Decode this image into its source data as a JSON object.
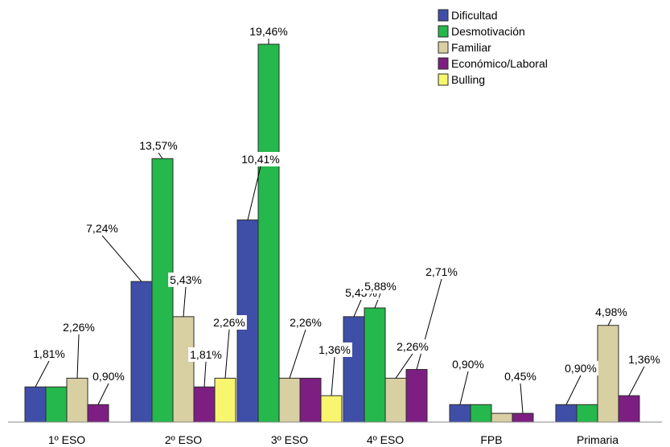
{
  "chart_data": {
    "type": "bar",
    "categories": [
      "1º ESO",
      "2º ESO",
      "3º ESO",
      "4º ESO",
      "FPB",
      "Primaria"
    ],
    "ylim": [
      0,
      21.0
    ],
    "grid": false,
    "legend_position": "top-right",
    "series": [
      {
        "name": "Dificultad",
        "color": "#3f4fa8",
        "values": [
          1.81,
          7.24,
          10.41,
          5.43,
          0.9,
          0.9
        ],
        "labels": [
          "1,81%",
          "7,24%",
          "10,41%",
          "5,43%",
          "0,90%",
          "0,90%"
        ]
      },
      {
        "name": "Desmotivación",
        "color": "#25b84c",
        "values": [
          1.81,
          13.57,
          19.46,
          5.88,
          0.9,
          0.9
        ],
        "labels": [
          "",
          "13,57%",
          "19,46%",
          "5,88%",
          "",
          ""
        ]
      },
      {
        "name": "Familiar",
        "color": "#d8cfa3",
        "values": [
          2.26,
          5.43,
          2.26,
          2.26,
          0.45,
          4.98
        ],
        "labels": [
          "2,26%",
          "5,43%",
          "2,26%",
          "2,26%",
          "",
          "4,98%"
        ]
      },
      {
        "name": "Económico/Laboral",
        "color": "#7d1f82",
        "values": [
          0.9,
          1.81,
          2.26,
          2.71,
          0.45,
          1.36
        ],
        "labels": [
          "0,90%",
          "1,81%",
          "",
          "2,71%",
          "0,45%",
          "1,36%"
        ]
      },
      {
        "name": "Bulling",
        "color": "#f8f56e",
        "values": [
          null,
          2.26,
          1.36,
          null,
          null,
          null
        ],
        "labels": [
          "",
          "2,26%",
          "1,36%",
          "",
          "",
          ""
        ]
      }
    ]
  }
}
